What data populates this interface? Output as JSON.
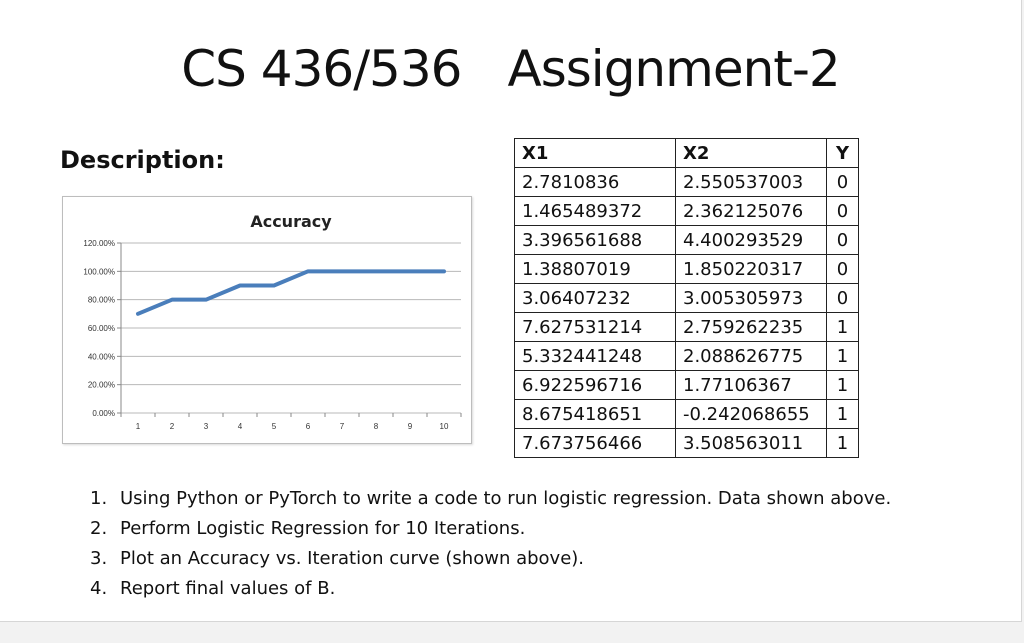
{
  "title": {
    "course": "CS 436/536",
    "assignment": "Assignment-2"
  },
  "description_heading": "Description:",
  "chart_data": {
    "type": "line",
    "title": "Accuracy",
    "categories": [
      "1",
      "2",
      "3",
      "4",
      "5",
      "6",
      "7",
      "8",
      "9",
      "10"
    ],
    "values": [
      0.7,
      0.8,
      0.8,
      0.9,
      0.9,
      1.0,
      1.0,
      1.0,
      1.0,
      1.0
    ],
    "y_ticks": [
      "0.00%",
      "20.00%",
      "40.00%",
      "60.00%",
      "80.00%",
      "100.00%",
      "120.00%"
    ],
    "ylim": [
      0,
      1.2
    ],
    "grid": true,
    "legend": "none",
    "line_color": "#4a7ebb"
  },
  "table": {
    "headers": [
      "X1",
      "X2",
      "Y"
    ],
    "rows": [
      [
        "2.7810836",
        "2.550537003",
        "0"
      ],
      [
        "1.465489372",
        "2.362125076",
        "0"
      ],
      [
        "3.396561688",
        "4.400293529",
        "0"
      ],
      [
        "1.38807019",
        "1.850220317",
        "0"
      ],
      [
        "3.06407232",
        "3.005305973",
        "0"
      ],
      [
        "7.627531214",
        "2.759262235",
        "1"
      ],
      [
        "5.332441248",
        "2.088626775",
        "1"
      ],
      [
        "6.922596716",
        "1.77106367",
        "1"
      ],
      [
        "8.675418651",
        "-0.242068655",
        "1"
      ],
      [
        "7.673756466",
        "3.508563011",
        "1"
      ]
    ]
  },
  "tasks": [
    {
      "num": "1.",
      "text": "Using Python or PyTorch to write a code to run logistic regression. Data shown above."
    },
    {
      "num": "2.",
      "text": "Perform Logistic Regression for 10 Iterations."
    },
    {
      "num": "3.",
      "text": "Plot an Accuracy vs. Iteration curve (shown above)."
    },
    {
      "num": "4.",
      "text": "Report final values of B."
    }
  ]
}
